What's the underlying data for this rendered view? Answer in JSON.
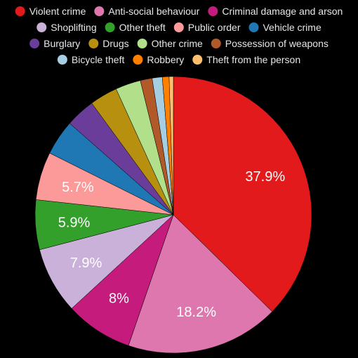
{
  "chart_data": {
    "type": "pie",
    "title": "",
    "legend_position": "top",
    "slices": [
      {
        "label": "Violent crime",
        "value": 37.9,
        "display": "37.9%",
        "color": "#e31a1c"
      },
      {
        "label": "Anti-social behaviour",
        "value": 18.2,
        "display": "18.2%",
        "color": "#de77ae"
      },
      {
        "label": "Criminal damage and arson",
        "value": 8.0,
        "display": "8%",
        "color": "#c51b7d"
      },
      {
        "label": "Shoplifting",
        "value": 7.9,
        "display": "7.9%",
        "color": "#c9b1d9"
      },
      {
        "label": "Other theft",
        "value": 5.9,
        "display": "5.9%",
        "color": "#33a02c"
      },
      {
        "label": "Public order",
        "value": 5.7,
        "display": "5.7%",
        "color": "#fb9a99"
      },
      {
        "label": "Vehicle crime",
        "value": 4.2,
        "display": "",
        "color": "#1f78b4"
      },
      {
        "label": "Burglary",
        "value": 3.5,
        "display": "",
        "color": "#6a3d9a"
      },
      {
        "label": "Drugs",
        "value": 3.3,
        "display": "",
        "color": "#b8900f"
      },
      {
        "label": "Other crime",
        "value": 3.0,
        "display": "",
        "color": "#b2df8a"
      },
      {
        "label": "Possession of weapons",
        "value": 1.4,
        "display": "",
        "color": "#b15928"
      },
      {
        "label": "Bicycle theft",
        "value": 1.2,
        "display": "",
        "color": "#a6cee3"
      },
      {
        "label": "Robbery",
        "value": 0.8,
        "display": "",
        "color": "#ff7f00"
      },
      {
        "label": "Theft from the person",
        "value": 0.5,
        "display": "",
        "color": "#fdbf6f"
      }
    ]
  }
}
